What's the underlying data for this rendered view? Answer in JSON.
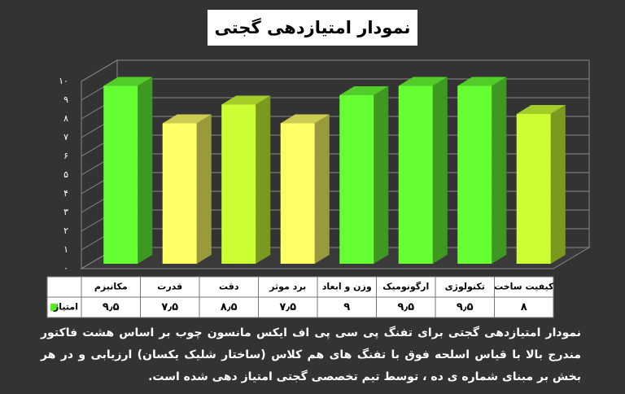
{
  "chart_data": {
    "type": "bar3d",
    "title": "نمودار امتیازدهی گجتی",
    "categories": [
      "مکانیزم",
      "قدرت",
      "دقت",
      "برد موثر",
      "وزن و ابعاد",
      "ارگونومیک",
      "تکنولوژی",
      "کیفیت ساخت"
    ],
    "series": [
      {
        "name": "امتیاز",
        "color": "#55ee22",
        "colors": [
          "#66ff33",
          "#ffff66",
          "#ccff33",
          "#ffff66",
          "#66ff33",
          "#66ff33",
          "#66ff33",
          "#ccff33"
        ],
        "values": [
          9.5,
          7.5,
          8.5,
          7.5,
          9,
          9.5,
          9.5,
          8
        ],
        "value_labels": [
          "۹٫۵",
          "۷٫۵",
          "۸٫۵",
          "۷٫۵",
          "۹",
          "۹٫۵",
          "۹٫۵",
          "۸"
        ]
      }
    ],
    "ylim": [
      0,
      10
    ],
    "yticks": [
      {
        "value": 0,
        "label": "۰"
      },
      {
        "value": 1,
        "label": "۱"
      },
      {
        "value": 2,
        "label": "۲"
      },
      {
        "value": 3,
        "label": "۳"
      },
      {
        "value": 4,
        "label": "۴"
      },
      {
        "value": 5,
        "label": "۵"
      },
      {
        "value": 6,
        "label": "۶"
      },
      {
        "value": 7,
        "label": "۷"
      },
      {
        "value": 8,
        "label": "۸"
      },
      {
        "value": 9,
        "label": "۹"
      },
      {
        "value": 10,
        "label": "۱۰"
      }
    ],
    "grid": true,
    "description": "نمودار امتیازدهی گجتی برای تفنگ پی سی پی اف ایکس مانسون چوب  بر اساس هشت فاکتور مندرج بالا با قیاس اسلحه فوق با تفنگ های هم کلاس (ساختار شلیک یکسان) ارزیابی و در هر بخش بر مبنای شماره ی ده ، توسط تیم تخصصی گجتی امتیاز دهی شده است."
  }
}
